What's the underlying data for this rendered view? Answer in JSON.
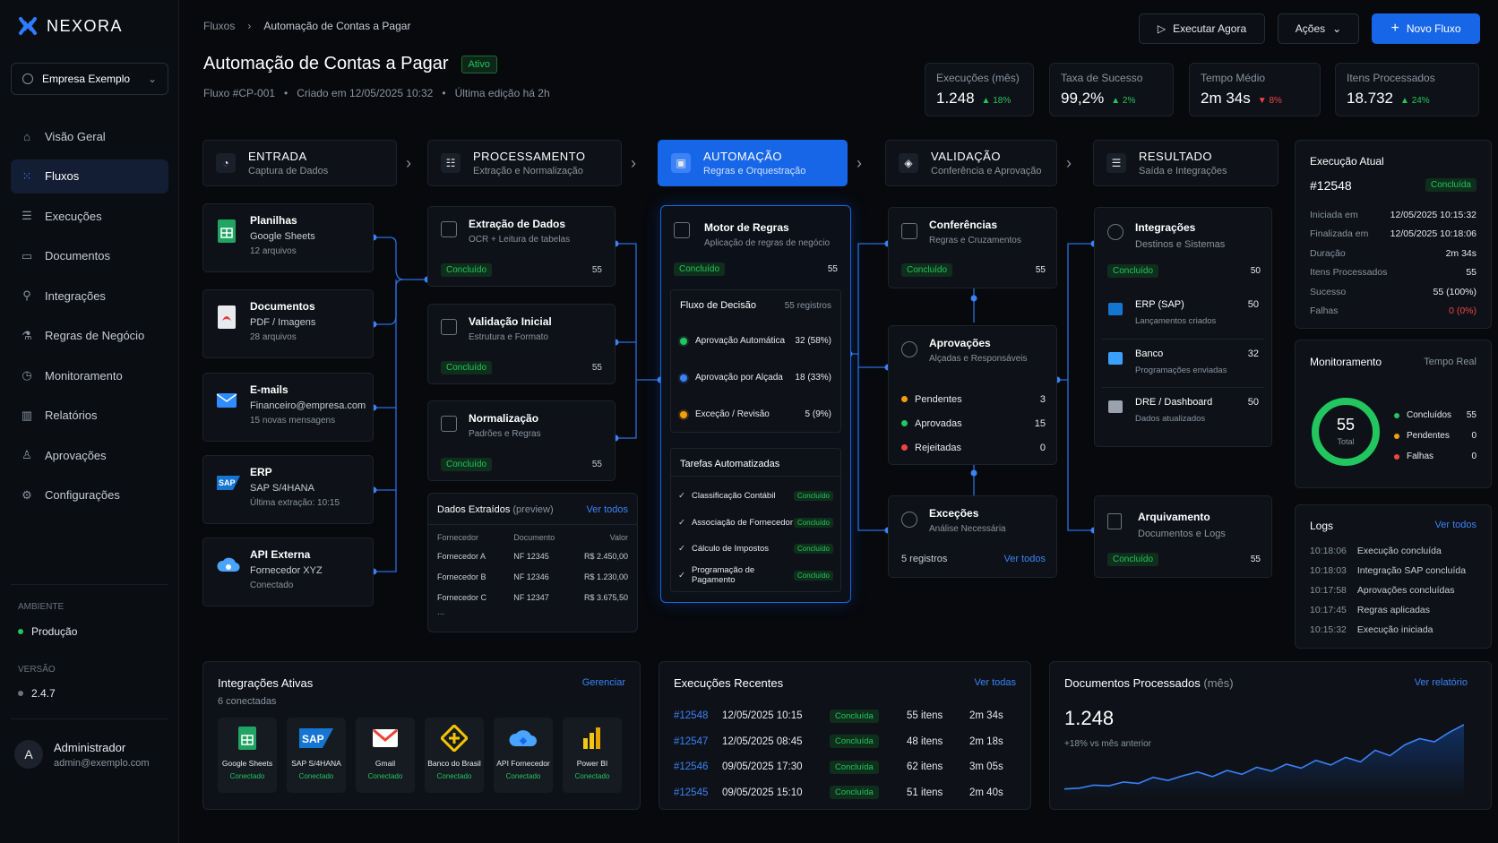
{
  "app": {
    "brand": "NEXORA",
    "company": "Empresa Exemplo"
  },
  "nav": [
    "Visão Geral",
    "Fluxos",
    "Execuções",
    "Documentos",
    "Integrações",
    "Regras de Negócio",
    "Monitoramento",
    "Relatórios",
    "Aprovações",
    "Configurações"
  ],
  "sidebar": {
    "env_label": "AMBIENTE",
    "env_value": "Produção",
    "ver_label": "VERSÃO",
    "ver_value": "2.4.7",
    "user_initial": "A",
    "user_name": "Administrador",
    "user_email": "admin@exemplo.com"
  },
  "header": {
    "crumb1": "Fluxos",
    "crumb2": "Automação de Contas a Pagar",
    "title": "Automação de Contas a Pagar",
    "status": "Ativo",
    "meta1": "Fluxo #CP-001",
    "meta2": "Criado em 12/05/2025 10:32",
    "meta3": "Última edição há 2h",
    "run": "Executar Agora",
    "actions": "Ações",
    "new": "Novo Fluxo"
  },
  "stats": [
    {
      "label": "Execuções (mês)",
      "value": "1.248",
      "delta": "18%",
      "up": true
    },
    {
      "label": "Taxa de Sucesso",
      "value": "99,2%",
      "delta": "2%",
      "up": true
    },
    {
      "label": "Tempo Médio",
      "value": "2m 34s",
      "delta": "8%",
      "up": false
    },
    {
      "label": "Itens Processados",
      "value": "18.732",
      "delta": "24%",
      "up": true
    }
  ],
  "stages": [
    {
      "t": "ENTRADA",
      "s": "Captura de Dados"
    },
    {
      "t": "PROCESSAMENTO",
      "s": "Extração e Normalização"
    },
    {
      "t": "AUTOMAÇÃO",
      "s": "Regras e Orquestração"
    },
    {
      "t": "VALIDAÇÃO",
      "s": "Conferência e Aprovação"
    },
    {
      "t": "RESULTADO",
      "s": "Saída e Integrações"
    }
  ],
  "sources": [
    {
      "t": "Planilhas",
      "s": "Google Sheets",
      "m": "12 arquivos"
    },
    {
      "t": "Documentos",
      "s": "PDF / Imagens",
      "m": "28 arquivos"
    },
    {
      "t": "E-mails",
      "s": "Financeiro@empresa.com",
      "m": "15 novas mensagens"
    },
    {
      "t": "ERP",
      "s": "SAP S/4HANA",
      "m": "Última extração: 10:15"
    },
    {
      "t": "API Externa",
      "s": "Fornecedor XYZ",
      "m": "Conectado"
    }
  ],
  "proc": [
    {
      "t": "Extração de Dados",
      "s": "OCR + Leitura de tabelas",
      "st": "Concluído",
      "n": "55"
    },
    {
      "t": "Validação Inicial",
      "s": "Estrutura e Formato",
      "st": "Concluído",
      "n": "55"
    },
    {
      "t": "Normalização",
      "s": "Padrões e Regras",
      "st": "Concluído",
      "n": "55"
    }
  ],
  "extract": {
    "title": "Dados Extraídos",
    "preview": "(preview)",
    "link": "Ver todos",
    "cols": [
      "Fornecedor",
      "Documento",
      "Valor"
    ],
    "rows": [
      [
        "Fornecedor A",
        "NF 12345",
        "R$ 2.450,00"
      ],
      [
        "Fornecedor B",
        "NF 12346",
        "R$ 1.230,00"
      ],
      [
        "Fornecedor C",
        "NF 12347",
        "R$ 3.675,50"
      ]
    ],
    "more": "..."
  },
  "auto": {
    "t": "Motor de Regras",
    "s": "Aplicação de regras de negócio",
    "st": "Concluído",
    "n": "55",
    "decision_title": "Fluxo de Decisão",
    "decision_count": "55 registros",
    "decisions": [
      {
        "l": "Aprovação Automática",
        "v": "32 (58%)",
        "c": "#22c55e"
      },
      {
        "l": "Aprovação por Alçada",
        "v": "18 (33%)",
        "c": "#3b82f6"
      },
      {
        "l": "Exceção / Revisão",
        "v": "5 (9%)",
        "c": "#f59e0b"
      }
    ],
    "tasks_title": "Tarefas Automatizadas",
    "tasks": [
      {
        "l": "Classificação Contábil",
        "s": "Concluído"
      },
      {
        "l": "Associação de Fornecedor",
        "s": "Concluído"
      },
      {
        "l": "Cálculo de Impostos",
        "s": "Concluído"
      },
      {
        "l": "Programação de Pagamento",
        "s": "Concluído"
      }
    ]
  },
  "validation": {
    "conf": {
      "t": "Conferências",
      "s": "Regras e Cruzamentos",
      "st": "Concluído",
      "n": "55"
    },
    "apr": {
      "t": "Aprovações",
      "s": "Alçadas e Responsáveis",
      "items": [
        {
          "l": "Pendentes",
          "v": "3",
          "c": "#f59e0b"
        },
        {
          "l": "Aprovadas",
          "v": "15",
          "c": "#22c55e"
        },
        {
          "l": "Rejeitadas",
          "v": "0",
          "c": "#ef4444"
        }
      ]
    },
    "exc": {
      "t": "Exceções",
      "s": "Análise Necessária",
      "n": "5 registros",
      "link": "Ver todos"
    }
  },
  "result": {
    "int": {
      "t": "Integrações",
      "s": "Destinos e Sistemas",
      "st": "Concluído",
      "n": "50",
      "items": [
        {
          "t": "ERP (SAP)",
          "s": "Lançamentos criados",
          "n": "50"
        },
        {
          "t": "Banco",
          "s": "Programações enviadas",
          "n": "32"
        },
        {
          "t": "DRE / Dashboard",
          "s": "Dados atualizados",
          "n": "50"
        }
      ]
    },
    "arq": {
      "t": "Arquivamento",
      "s": "Documentos e Logs",
      "st": "Concluído",
      "n": "55"
    }
  },
  "current": {
    "title": "Execução Atual",
    "id": "#12548",
    "status": "Concluída",
    "rows": [
      [
        "Iniciada em",
        "12/05/2025 10:15:32"
      ],
      [
        "Finalizada em",
        "12/05/2025 10:18:06"
      ],
      [
        "Duração",
        "2m 34s"
      ],
      [
        "Itens Processados",
        "55"
      ],
      [
        "Sucesso",
        "55 (100%)"
      ],
      [
        "Falhas",
        "0 (0%)"
      ]
    ]
  },
  "monitor": {
    "title": "Monitoramento",
    "mode": "Tempo Real",
    "total": "55",
    "total_label": "Total",
    "items": [
      {
        "l": "Concluídos",
        "v": "55",
        "c": "#22c55e"
      },
      {
        "l": "Pendentes",
        "v": "0",
        "c": "#f59e0b"
      },
      {
        "l": "Falhas",
        "v": "0",
        "c": "#ef4444"
      }
    ],
    "success_fraction": 1.0
  },
  "logs": {
    "title": "Logs",
    "link": "Ver todos",
    "rows": [
      [
        "10:18:06",
        "Execução concluída"
      ],
      [
        "10:18:03",
        "Integração SAP concluída"
      ],
      [
        "10:17:58",
        "Aprovações concluídas"
      ],
      [
        "10:17:45",
        "Regras aplicadas"
      ],
      [
        "10:15:32",
        "Execução iniciada"
      ]
    ]
  },
  "integrations": {
    "title": "Integrações Ativas",
    "sub": "6 conectadas",
    "link": "Gerenciar",
    "items": [
      {
        "n": "Google Sheets",
        "s": "Conectado"
      },
      {
        "n": "SAP S/4HANA",
        "s": "Conectado"
      },
      {
        "n": "Gmail",
        "s": "Conectado"
      },
      {
        "n": "Banco do Brasil",
        "s": "Conectado"
      },
      {
        "n": "API Fornecedor",
        "s": "Conectado"
      },
      {
        "n": "Power BI",
        "s": "Conectado"
      }
    ]
  },
  "recent": {
    "title": "Execuções Recentes",
    "link": "Ver todas",
    "rows": [
      [
        "#12548",
        "12/05/2025 10:15",
        "Concluída",
        "55 itens",
        "2m 34s"
      ],
      [
        "#12547",
        "12/05/2025 08:45",
        "Concluída",
        "48 itens",
        "2m 18s"
      ],
      [
        "#12546",
        "09/05/2025 17:30",
        "Concluída",
        "62 itens",
        "3m 05s"
      ],
      [
        "#12545",
        "09/05/2025 15:10",
        "Concluída",
        "51 itens",
        "2m 40s"
      ]
    ]
  },
  "docs": {
    "title": "Documentos Processados",
    "period": "(mês)",
    "link": "Ver relatório",
    "value": "1.248",
    "delta": "+18% vs mês anterior",
    "chart_data": {
      "type": "area",
      "values": [
        5,
        6,
        10,
        9,
        14,
        12,
        20,
        16,
        22,
        27,
        21,
        29,
        24,
        33,
        28,
        37,
        32,
        42,
        36,
        46,
        40,
        55,
        48,
        62,
        70,
        66,
        78,
        88
      ]
    }
  }
}
